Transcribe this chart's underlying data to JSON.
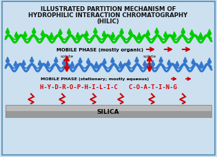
{
  "title_line1": "ILLUSTRATED PARTITION MECHANISM OF",
  "title_line2": "HYDROPHILIC INTERACTION CHROMATOGRAPHY",
  "title_line3": "(HILIC)",
  "mobile_phase_top": "MOBILE PHASE (mostly organic)",
  "mobile_phase_bottom": "MOBILE PHASE (stationary; mostly aqueous)",
  "solute_left": "solute",
  "solute_right": "solute",
  "coating_text": "H-Y-D-R-O-P-H-I-L-I-C   C-O-A-T-I-N-G",
  "silica_label": "SILICA",
  "bg_color": "#cce0f0",
  "border_color": "#6699bb",
  "title_color": "#111111",
  "green_color": "#00cc00",
  "blue_color": "#3377cc",
  "red_color": "#cc0000",
  "silica_top_color": "#cccccc",
  "silica_bot_color": "#888888",
  "fig_width": 3.15,
  "fig_height": 2.3,
  "dpi": 100
}
